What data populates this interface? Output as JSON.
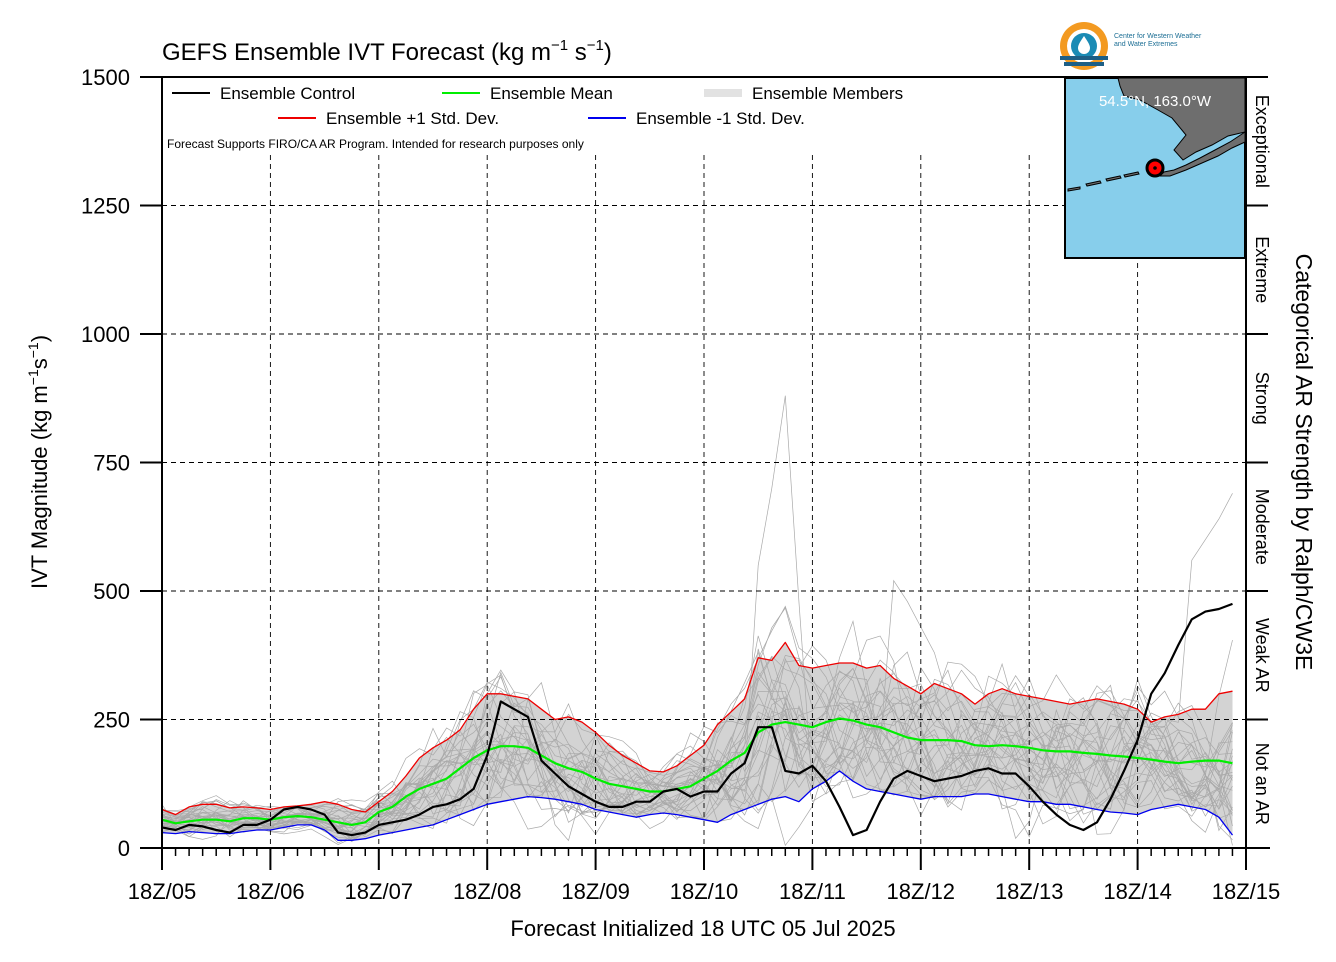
{
  "title_main": "GEFS Ensemble IVT Forecast (kg m",
  "title_exp1": "−1",
  "title_mid": " s",
  "title_exp2": "−1",
  "title_end": ")",
  "logo": {
    "line1": "Center for Western Weather",
    "line2": "and Water Extremes",
    "colors": {
      "orange": "#f39a21",
      "teal": "#1a8bb5",
      "navy": "#1d5f86"
    }
  },
  "inset": {
    "label": "54.5°N, 163.0°W",
    "land_color": "#6e6e6e",
    "ocean_color": "#87ceeb",
    "marker_color": "#ff0000",
    "marker": {
      "lat": 54.5,
      "lon": -163.0
    }
  },
  "chart_data": {
    "type": "line",
    "title": "GEFS Ensemble IVT Forecast (kg m−1 s−1)",
    "xlabel": "Forecast Initialized 18 UTC 05 Jul 2025",
    "ylabel_main": "IVT Magnitude (kg m",
    "ylabel_exp1": "−1",
    "ylabel_mid": "s",
    "ylabel_exp2": "−1",
    "ylabel_end": ")",
    "right_label": "Categorical AR Strength by Ralph/CW3E",
    "note": "Forecast Supports FIRO/CA AR Program. Intended for research purposes only",
    "x_unit": "days since 18Z/05",
    "xlim": [
      0,
      10
    ],
    "ylim": [
      0,
      1500
    ],
    "x_ticks": [
      "18Z/05",
      "18Z/06",
      "18Z/07",
      "18Z/08",
      "18Z/09",
      "18Z/10",
      "18Z/11",
      "18Z/12",
      "18Z/13",
      "18Z/14",
      "18Z/15"
    ],
    "y_ticks": [
      0,
      250,
      500,
      750,
      1000,
      1250,
      1500
    ],
    "grid": true,
    "legend_position": "top-left",
    "categories_ar": [
      {
        "label": "Not an AR",
        "from": 0,
        "to": 250
      },
      {
        "label": "Weak AR",
        "from": 250,
        "to": 500
      },
      {
        "label": "Moderate",
        "from": 500,
        "to": 750
      },
      {
        "label": "Strong",
        "from": 750,
        "to": 1000
      },
      {
        "label": "Extreme",
        "from": 1000,
        "to": 1250
      },
      {
        "label": "Exceptional",
        "from": 1250,
        "to": 1500
      }
    ],
    "legend": [
      {
        "name": "Ensemble Control",
        "color": "#000000"
      },
      {
        "name": "Ensemble Mean",
        "color": "#00ee00"
      },
      {
        "name": "Ensemble Members",
        "color": "#b0b0b0"
      },
      {
        "name": "Ensemble +1 Std. Dev.",
        "color": "#ee0000"
      },
      {
        "name": "Ensemble -1 Std. Dev.",
        "color": "#0000ee"
      }
    ],
    "x_step": 0.125,
    "series": [
      {
        "name": "Ensemble Control",
        "color": "#000000",
        "values": [
          40,
          35,
          45,
          42,
          35,
          30,
          45,
          45,
          55,
          75,
          80,
          75,
          65,
          30,
          25,
          30,
          45,
          50,
          55,
          65,
          80,
          85,
          95,
          115,
          180,
          285,
          270,
          255,
          170,
          145,
          120,
          105,
          90,
          80,
          80,
          90,
          90,
          110,
          115,
          100,
          110,
          110,
          145,
          165,
          235,
          235,
          150,
          145,
          160,
          130,
          80,
          25,
          35,
          90,
          135,
          150,
          140,
          130,
          135,
          140,
          150,
          155,
          145,
          145,
          120,
          90,
          65,
          45,
          35,
          50,
          95,
          150,
          210,
          300,
          340,
          395,
          445,
          460,
          465,
          475
        ]
      },
      {
        "name": "Ensemble Mean",
        "color": "#00ee00",
        "values": [
          55,
          48,
          52,
          55,
          55,
          52,
          58,
          58,
          55,
          60,
          62,
          60,
          55,
          50,
          45,
          50,
          70,
          80,
          100,
          115,
          125,
          135,
          155,
          175,
          190,
          198,
          198,
          195,
          180,
          165,
          155,
          148,
          135,
          125,
          120,
          115,
          110,
          110,
          115,
          120,
          135,
          150,
          170,
          185,
          225,
          240,
          245,
          240,
          235,
          245,
          252,
          248,
          240,
          235,
          225,
          215,
          210,
          210,
          210,
          208,
          200,
          198,
          200,
          198,
          195,
          190,
          188,
          188,
          185,
          183,
          180,
          178,
          175,
          172,
          168,
          165,
          168,
          170,
          170,
          165
        ]
      },
      {
        "name": "Ensemble +1 Std. Dev.",
        "color": "#ee0000",
        "values": [
          75,
          65,
          80,
          85,
          85,
          78,
          80,
          78,
          75,
          80,
          82,
          85,
          90,
          85,
          75,
          70,
          90,
          110,
          140,
          175,
          195,
          210,
          230,
          270,
          300,
          300,
          295,
          290,
          270,
          250,
          255,
          245,
          225,
          200,
          180,
          165,
          150,
          148,
          160,
          180,
          200,
          240,
          265,
          290,
          370,
          365,
          400,
          355,
          350,
          355,
          360,
          360,
          350,
          355,
          330,
          315,
          300,
          320,
          310,
          300,
          280,
          300,
          310,
          300,
          295,
          290,
          285,
          280,
          285,
          290,
          285,
          280,
          270,
          245,
          255,
          260,
          270,
          270,
          300,
          305
        ]
      },
      {
        "name": "Ensemble -1 Std. Dev.",
        "color": "#0000ee",
        "values": [
          30,
          28,
          32,
          30,
          28,
          28,
          32,
          35,
          35,
          40,
          45,
          45,
          35,
          15,
          15,
          18,
          25,
          30,
          35,
          40,
          45,
          55,
          65,
          75,
          85,
          90,
          95,
          100,
          98,
          95,
          90,
          85,
          75,
          70,
          65,
          60,
          65,
          68,
          65,
          60,
          55,
          50,
          65,
          75,
          85,
          95,
          100,
          90,
          115,
          130,
          150,
          130,
          115,
          110,
          105,
          100,
          95,
          100,
          100,
          100,
          105,
          105,
          100,
          95,
          90,
          90,
          85,
          85,
          80,
          75,
          70,
          68,
          65,
          75,
          80,
          85,
          80,
          75,
          60,
          25
        ]
      }
    ]
  }
}
